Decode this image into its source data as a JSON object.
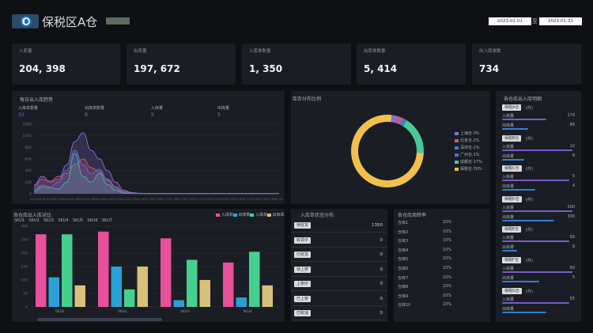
{
  "header": {
    "title": "保税区A仓",
    "badge": "",
    "date_start": "2023-01-01",
    "date_separator": "至",
    "date_end": "2023-01-31"
  },
  "stats": [
    {
      "label": "入库量",
      "value": "204, 398"
    },
    {
      "label": "出库量",
      "value": "197, 672"
    },
    {
      "label": "入库单数量",
      "value": "1, 350"
    },
    {
      "label": "出库单数量",
      "value": "5, 414"
    },
    {
      "label": "出入库单数",
      "value": "734"
    }
  ],
  "trend": {
    "title": "每日出入库趋势",
    "metrics": [
      {
        "label": "入库单数量",
        "value": "33",
        "color": "#6f6fd6"
      },
      {
        "label": "出库单数量",
        "value": "0",
        "color": "#49c99a"
      },
      {
        "label": "入库量",
        "value": "5",
        "color": "#8f6fd6"
      },
      {
        "label": "出库量",
        "value": "5",
        "color": "#d05a7a"
      }
    ]
  },
  "donut": {
    "title": "库存分布比例",
    "legend": [
      {
        "label": "上海仓·3%",
        "color": "#8b6fd0"
      },
      {
        "label": "北京仓·2%",
        "color": "#d05a7a"
      },
      {
        "label": "深圳仓·1%",
        "color": "#2a8fd1"
      },
      {
        "label": "广州仓·1%",
        "color": "#5a6bd0"
      },
      {
        "label": "成都仓·17%",
        "color": "#49c99a"
      },
      {
        "label": "保税仓·76%",
        "color": "#f2c04c"
      }
    ]
  },
  "bar_chart": {
    "title": "各仓库出入库对比",
    "sub_tabs": [
      "SKU1",
      "SKU2",
      "SKU3",
      "SKU4",
      "SKU5",
      "SKU6",
      "SKU7"
    ],
    "legend": [
      {
        "label": "入库数",
        "color": "#e8509a"
      },
      {
        "label": "出库数",
        "color": "#2aa1d6"
      },
      {
        "label": "入库单",
        "color": "#45d08f"
      },
      {
        "label": "出库单",
        "color": "#d8c17a"
      }
    ]
  },
  "inbound_list": {
    "title": "入库单状态分布",
    "rows": [
      {
        "label": "待收货",
        "value": "1350"
      },
      {
        "label": "收货中",
        "value": "0"
      },
      {
        "label": "已收货",
        "value": "0"
      },
      {
        "label": "待上架",
        "value": "0"
      },
      {
        "label": "上架中",
        "value": "0"
      },
      {
        "label": "已上架",
        "value": "0"
      },
      {
        "label": "已取消",
        "value": "0"
      }
    ]
  },
  "rate_list": {
    "title": "各仓库周转率",
    "rows": [
      {
        "label": "仓库1",
        "value": "10%"
      },
      {
        "label": "仓库2",
        "value": "10%"
      },
      {
        "label": "仓库3",
        "value": "10%"
      },
      {
        "label": "仓库4",
        "value": "10%"
      },
      {
        "label": "仓库5",
        "value": "10%"
      },
      {
        "label": "仓库6",
        "value": "10%"
      },
      {
        "label": "仓库7",
        "value": "10%"
      },
      {
        "label": "仓库8",
        "value": "10%"
      },
      {
        "label": "仓库9",
        "value": "10%"
      },
      {
        "label": "仓库10",
        "value": "10%"
      }
    ]
  },
  "warehouse_list": {
    "title": "各仓库出入库明细",
    "groups": [
      {
        "name": "保税A仓",
        "unit": "(件)",
        "r1": "入库量",
        "v1": "174",
        "p1": 0.6,
        "r2": "出库量",
        "v2": "89",
        "p2": 0.35
      },
      {
        "name": "保税B仓",
        "unit": "(件)",
        "r1": "入库量",
        "v1": "12",
        "p1": 0.95,
        "r2": "出库量",
        "v2": "8",
        "p2": 0.3
      },
      {
        "name": "保税C仓",
        "unit": "(件)",
        "r1": "入库量",
        "v1": "5",
        "p1": 0.9,
        "r2": "出库量",
        "v2": "4",
        "p2": 0.45
      },
      {
        "name": "保税D仓",
        "unit": "(件)",
        "r1": "入库量",
        "v1": "300",
        "p1": 0.95,
        "r2": "出库量",
        "v2": "300",
        "p2": 0.7
      },
      {
        "name": "保税E仓",
        "unit": "(件)",
        "r1": "入库量",
        "v1": "58",
        "p1": 0.9,
        "r2": "出库量",
        "v2": "9",
        "p2": 0.2
      },
      {
        "name": "保税F仓",
        "unit": "(件)",
        "r1": "入库量",
        "v1": "50",
        "p1": 0.95,
        "r2": "出库量",
        "v2": "5",
        "p2": 0.5
      },
      {
        "name": "保税G仓",
        "unit": "(件)",
        "r1": "入库量",
        "v1": "55",
        "p1": 0.9,
        "r2": "出库量",
        "v2": "",
        "p2": 0.6
      }
    ]
  },
  "chart_data": [
    {
      "type": "area",
      "title": "每日出入库趋势",
      "x": [
        "01-01",
        "01-02",
        "01-03",
        "01-04",
        "01-05",
        "01-06",
        "01-07",
        "01-08",
        "01-09",
        "01-10",
        "01-11",
        "01-12",
        "01-13",
        "01-14",
        "01-15",
        "01-16",
        "01-17",
        "01-18",
        "01-19",
        "01-20",
        "01-21",
        "01-22",
        "01-23",
        "01-24",
        "01-25",
        "01-26",
        "01-27",
        "01-28",
        "01-29",
        "01-30",
        "01-31"
      ],
      "ylim": [
        0,
        1200
      ],
      "yticks": [
        0,
        200,
        400,
        600,
        800,
        1000,
        1200
      ],
      "series": [
        {
          "color": "#8f6fd6",
          "values": [
            150,
            300,
            200,
            250,
            500,
            900,
            1050,
            750,
            600,
            400,
            200,
            60,
            20,
            10,
            5,
            5,
            5,
            5,
            5,
            5,
            5,
            5,
            5,
            5,
            5,
            5,
            5,
            5,
            5,
            5,
            5
          ]
        },
        {
          "color": "#d05a7a",
          "values": [
            120,
            250,
            220,
            300,
            350,
            500,
            600,
            450,
            380,
            250,
            120,
            40,
            10,
            5,
            5,
            5,
            5,
            5,
            5,
            5,
            5,
            5,
            5,
            5,
            5,
            5,
            5,
            5,
            5,
            5,
            5
          ]
        },
        {
          "color": "#49c99a",
          "values": [
            50,
            120,
            100,
            80,
            200,
            700,
            300,
            200,
            350,
            160,
            60,
            10,
            5,
            5,
            5,
            5,
            5,
            5,
            5,
            5,
            5,
            5,
            5,
            5,
            5,
            5,
            5,
            5,
            5,
            5,
            5
          ]
        },
        {
          "color": "#6f6fd6",
          "values": [
            80,
            150,
            120,
            200,
            400,
            750,
            500,
            350,
            420,
            230,
            100,
            20,
            10,
            5,
            5,
            5,
            5,
            5,
            5,
            5,
            5,
            5,
            5,
            5,
            5,
            5,
            5,
            5,
            5,
            5,
            5
          ]
        }
      ]
    },
    {
      "type": "pie",
      "title": "库存分布比例",
      "values": [
        3,
        2,
        1,
        1,
        17,
        76
      ],
      "labels": [
        "上海仓·3%",
        "北京仓·2%",
        "深圳仓·1%",
        "广州仓·1%",
        "成都仓·17%",
        "保税仓·76%"
      ],
      "colors": [
        "#8b6fd0",
        "#d05a7a",
        "#2a8fd1",
        "#5a6bd0",
        "#49c99a",
        "#f2c04c"
      ]
    },
    {
      "type": "bar",
      "title": "各仓库出入库对比",
      "categories": [
        "SKU1",
        "SKU2",
        "SKU3",
        "SKU4"
      ],
      "ylim": [
        0,
        300
      ],
      "yticks": [
        0,
        50,
        100,
        150,
        200,
        250,
        300
      ],
      "series": [
        {
          "name": "入库数",
          "color": "#e8509a",
          "values": [
            270,
            280,
            255,
            165
          ]
        },
        {
          "name": "出库数",
          "color": "#2aa1d6",
          "values": [
            110,
            150,
            25,
            35
          ]
        },
        {
          "name": "入库单",
          "color": "#45d08f",
          "values": [
            270,
            65,
            175,
            205
          ]
        },
        {
          "name": "出库单",
          "color": "#d8c17a",
          "values": [
            80,
            150,
            100,
            80
          ]
        }
      ]
    }
  ]
}
